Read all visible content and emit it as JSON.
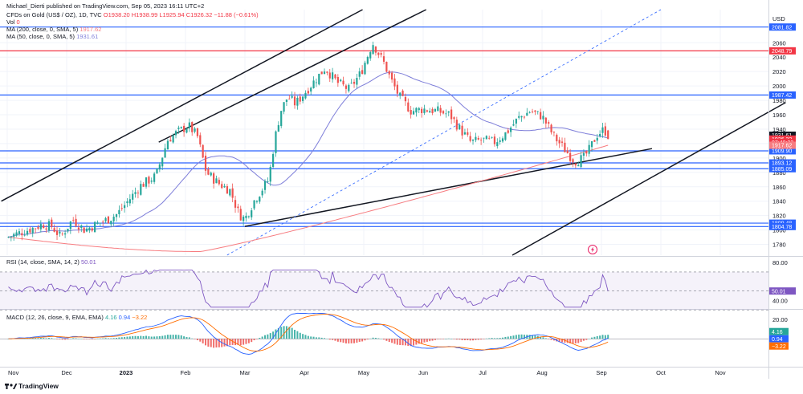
{
  "header": {
    "author": "Michael_Dierti",
    "published": "published on TradingView.com, Sep 05, 2023 16:11 UTC+2",
    "instrument": "CFDs on Gold (US$ / OZ), 1D, TVC",
    "ohlc": "O1938.20 H1938.99 L1925.94 C1926.32 −11.88 (−0.61%)",
    "vol_label": "Vol",
    "vol_value": "0",
    "ma200_label": "MA (200, close, 0, SMA, 5)",
    "ma200_value": "1917.62",
    "ma50_label": "MA (50, close, 0, SMA, 5)",
    "ma50_value": "1931.61",
    "rsi_label": "RSI (14, close, SMA, 14, 2)",
    "rsi_value": "50.01",
    "macd_label": "MACD (12, 26, close, 9, EMA, EMA)",
    "macd_v1": "4.16",
    "macd_v2": "0.94",
    "macd_v3": "−3.22"
  },
  "footer": {
    "brand": "TradingView"
  },
  "colors": {
    "up": "#26a69a",
    "down": "#ef5350",
    "ma200": "#f77c80",
    "ma50": "#7e7ed9",
    "blue_level": "#2962ff",
    "red_level": "#f23645",
    "rsi": "#7e57c2",
    "macd": "#2962ff",
    "signal": "#ff6d00"
  },
  "chart_data": [
    {
      "type": "candlestick",
      "title": "CFDs on Gold (US$ / OZ), 1D, TVC",
      "currency": "USD",
      "x_ticks": [
        "Nov",
        "Dec",
        "2023",
        "Feb",
        "Mar",
        "Apr",
        "May",
        "Jun",
        "Jul",
        "Aug",
        "Sep",
        "Oct",
        "Nov"
      ],
      "x_tick_months": [
        0,
        1,
        2,
        3,
        4,
        5,
        6,
        7,
        8,
        9,
        10,
        11,
        12
      ],
      "x_range_months": [
        -0.1,
        13.1
      ],
      "ylim": [
        1765,
        2106
      ],
      "y_ticks": [
        1780,
        1800,
        1820,
        1840,
        1860,
        1880,
        1900,
        1920,
        1940,
        1960,
        1980,
        2000,
        2020,
        2040,
        2060
      ],
      "horizontal_levels": [
        {
          "value": 2081.82,
          "color": "#2962ff"
        },
        {
          "value": 2048.79,
          "color": "#f23645"
        },
        {
          "value": 1987.42,
          "color": "#2962ff"
        },
        {
          "value": 1909.9,
          "color": "#2962ff"
        },
        {
          "value": 1893.12,
          "color": "#2962ff"
        },
        {
          "value": 1885.09,
          "color": "#2962ff"
        },
        {
          "value": 1809.48,
          "color": "#2962ff"
        },
        {
          "value": 1804.78,
          "color": "#2962ff"
        }
      ],
      "price_badges": [
        {
          "label": "1931.61",
          "value": 1931.61,
          "color": "#131722"
        },
        {
          "label": "1926.32",
          "value": 1926.32,
          "color": "#f23645"
        },
        {
          "label": "07:48:33",
          "value": 1921.5,
          "color": "#f23645"
        },
        {
          "label": "1917.62",
          "value": 1917.62,
          "color": "#f77c80"
        }
      ],
      "close_anchor_points": [
        [
          0.0,
          1790
        ],
        [
          0.45,
          1803
        ],
        [
          0.6,
          1808
        ],
        [
          0.75,
          1805
        ],
        [
          0.9,
          1790
        ],
        [
          1.1,
          1815
        ],
        [
          1.3,
          1800
        ],
        [
          1.5,
          1808
        ],
        [
          1.7,
          1815
        ],
        [
          1.85,
          1822
        ],
        [
          2.05,
          1842
        ],
        [
          2.25,
          1862
        ],
        [
          2.5,
          1875
        ],
        [
          2.7,
          1925
        ],
        [
          2.85,
          1935
        ],
        [
          3.05,
          1945
        ],
        [
          3.2,
          1930
        ],
        [
          3.35,
          1880
        ],
        [
          3.55,
          1865
        ],
        [
          3.75,
          1855
        ],
        [
          3.9,
          1822
        ],
        [
          4.0,
          1815
        ],
        [
          4.15,
          1840
        ],
        [
          4.3,
          1858
        ],
        [
          4.4,
          1870
        ],
        [
          4.5,
          1925
        ],
        [
          4.6,
          1965
        ],
        [
          4.72,
          1985
        ],
        [
          4.85,
          1975
        ],
        [
          5.0,
          1990
        ],
        [
          5.15,
          2005
        ],
        [
          5.35,
          2025
        ],
        [
          5.55,
          2005
        ],
        [
          5.75,
          1995
        ],
        [
          5.95,
          2018
        ],
        [
          6.15,
          2060
        ],
        [
          6.35,
          2030
        ],
        [
          6.45,
          2010
        ],
        [
          6.6,
          1985
        ],
        [
          6.8,
          1965
        ],
        [
          7.0,
          1968
        ],
        [
          7.25,
          1965
        ],
        [
          7.45,
          1960
        ],
        [
          7.6,
          1942
        ],
        [
          7.8,
          1922
        ],
        [
          8.0,
          1925
        ],
        [
          8.2,
          1922
        ],
        [
          8.4,
          1935
        ],
        [
          8.6,
          1955
        ],
        [
          8.8,
          1965
        ],
        [
          9.0,
          1958
        ],
        [
          9.2,
          1930
        ],
        [
          9.35,
          1915
        ],
        [
          9.55,
          1895
        ],
        [
          9.7,
          1900
        ],
        [
          9.8,
          1912
        ],
        [
          9.92,
          1932
        ],
        [
          10.05,
          1940
        ],
        [
          10.12,
          1926
        ]
      ],
      "trendlines": [
        {
          "from": [
            -0.1,
            1840
          ],
          "to": [
            5.98,
            2106
          ],
          "color": "#131722"
        },
        {
          "from": [
            2.55,
            1922
          ],
          "to": [
            7.05,
            2106
          ],
          "color": "#131722"
        },
        {
          "from": [
            4.0,
            1805
          ],
          "to": [
            10.85,
            1913
          ],
          "color": "#131722"
        },
        {
          "from": [
            8.5,
            1765
          ],
          "to": [
            13.1,
            1977
          ],
          "color": "#131722"
        },
        {
          "from": [
            3.7,
            1765
          ],
          "to": [
            11.0,
            2106
          ],
          "color": "#2962ff",
          "dashed": true
        }
      ]
    },
    {
      "type": "line",
      "title": "RSI (14, close, SMA, 14, 2)",
      "ylim": [
        32,
        86
      ],
      "y_ticks": [
        40,
        80
      ],
      "band": [
        70,
        30
      ],
      "last_value": 50.01
    },
    {
      "type": "line",
      "title": "MACD (12, 26, close, 9, EMA, EMA)",
      "ylim": [
        -28,
        30
      ],
      "y_ticks": [
        0,
        20
      ],
      "series": [
        {
          "values": [
            4.16
          ],
          "color": "#26a69a"
        },
        {
          "values": [
            0.94
          ],
          "color": "#2962ff"
        },
        {
          "values": [
            -3.22
          ],
          "color": "#ff6d00"
        }
      ]
    }
  ]
}
